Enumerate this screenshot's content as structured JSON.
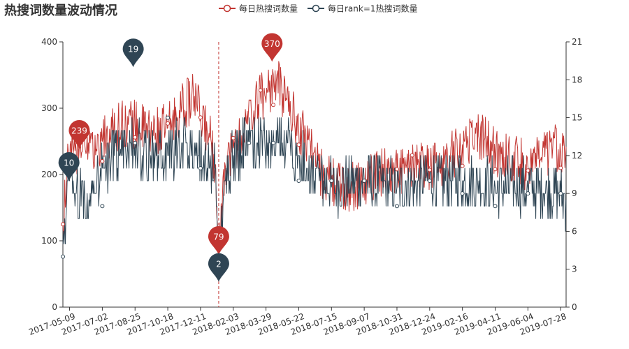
{
  "chart_data": {
    "type": "line",
    "title": "热搜词数量波动情况",
    "colors": {
      "series1": "#c23531",
      "series2": "#2f4554",
      "axis": "#333333",
      "markline": "#c23531"
    },
    "legend": {
      "placement": "top-center"
    },
    "grid": false,
    "x_range": [
      "2017-04-28",
      "2019-08-06"
    ],
    "x_tick_labels": [
      "2017-05-09",
      "2017-07-02",
      "2017-08-25",
      "2017-10-18",
      "2017-12-11",
      "2018-02-03",
      "2018-03-29",
      "2018-05-22",
      "2018-07-15",
      "2018-09-07",
      "2018-10-31",
      "2018-12-24",
      "2019-02-16",
      "2019-04-11",
      "2019-06-04",
      "2019-07-28"
    ],
    "y_left": {
      "range": [
        0,
        400
      ],
      "ticks": [
        "0",
        "100",
        "200",
        "300",
        "400"
      ]
    },
    "y_right": {
      "range": [
        0,
        21
      ],
      "ticks": [
        "0",
        "3",
        "6",
        "9",
        "12",
        "15",
        "18",
        "21"
      ]
    },
    "mark_line_date": "2018-01-10",
    "series": [
      {
        "name": "每日热搜词数量",
        "axis": "left",
        "color": "#c23531",
        "keypoints": [
          [
            "2017-04-28",
            125
          ],
          [
            "2017-05-05",
            215
          ],
          [
            "2017-05-15",
            232
          ],
          [
            "2017-05-25",
            239
          ],
          [
            "2017-06-10",
            232
          ],
          [
            "2017-07-02",
            250
          ],
          [
            "2017-07-20",
            268
          ],
          [
            "2017-08-10",
            280
          ],
          [
            "2017-08-25",
            275
          ],
          [
            "2017-09-20",
            262
          ],
          [
            "2017-10-18",
            270
          ],
          [
            "2017-11-10",
            300
          ],
          [
            "2017-12-01",
            318
          ],
          [
            "2017-12-11",
            285
          ],
          [
            "2017-12-25",
            262
          ],
          [
            "2018-01-05",
            215
          ],
          [
            "2018-01-10",
            79
          ],
          [
            "2018-01-20",
            218
          ],
          [
            "2018-02-03",
            240
          ],
          [
            "2018-02-20",
            262
          ],
          [
            "2018-03-05",
            290
          ],
          [
            "2018-03-20",
            318
          ],
          [
            "2018-04-01",
            328
          ],
          [
            "2018-04-15",
            340
          ],
          [
            "2018-05-01",
            315
          ],
          [
            "2018-05-22",
            268
          ],
          [
            "2018-06-10",
            250
          ],
          [
            "2018-06-25",
            205
          ],
          [
            "2018-07-15",
            190
          ],
          [
            "2018-08-10",
            178
          ],
          [
            "2018-09-07",
            190
          ],
          [
            "2018-10-01",
            205
          ],
          [
            "2018-10-31",
            205
          ],
          [
            "2018-11-25",
            208
          ],
          [
            "2018-12-24",
            212
          ],
          [
            "2019-01-20",
            220
          ],
          [
            "2019-02-16",
            245
          ],
          [
            "2019-03-10",
            262
          ],
          [
            "2019-03-25",
            255
          ],
          [
            "2019-04-11",
            232
          ],
          [
            "2019-05-10",
            225
          ],
          [
            "2019-06-04",
            212
          ],
          [
            "2019-06-25",
            222
          ],
          [
            "2019-07-15",
            240
          ],
          [
            "2019-08-06",
            242
          ]
        ],
        "markers": [
          [
            "2017-04-28",
            125
          ],
          [
            "2017-05-20",
            219
          ],
          [
            "2017-07-02",
            220
          ],
          [
            "2017-08-25",
            256
          ],
          [
            "2017-10-18",
            277
          ],
          [
            "2017-12-11",
            286
          ],
          [
            "2018-02-03",
            255
          ],
          [
            "2018-03-20",
            327
          ],
          [
            "2018-04-10",
            305
          ],
          [
            "2018-05-22",
            245
          ],
          [
            "2018-07-15",
            190
          ],
          [
            "2018-09-07",
            190
          ],
          [
            "2018-10-31",
            208
          ],
          [
            "2018-11-25",
            229
          ],
          [
            "2018-12-24",
            207
          ],
          [
            "2019-02-16",
            213
          ],
          [
            "2019-04-11",
            208
          ],
          [
            "2019-06-04",
            206
          ],
          [
            "2019-07-28",
            210
          ]
        ],
        "pins": [
          {
            "label": "239",
            "date": "2017-05-25",
            "value": 239,
            "role": "max"
          },
          {
            "label": "370",
            "date": "2018-04-08",
            "value": 370,
            "role": "max"
          },
          {
            "label": "79",
            "date": "2018-01-10",
            "value": 79,
            "role": "min"
          }
        ]
      },
      {
        "name": "每日rank=1热搜词数量",
        "axis": "right",
        "color": "#2f4554",
        "keypoints": [
          [
            "2017-04-28",
            4
          ],
          [
            "2017-05-05",
            10
          ],
          [
            "2017-05-20",
            9
          ],
          [
            "2017-06-10",
            8.5
          ],
          [
            "2017-07-02",
            11
          ],
          [
            "2017-08-01",
            12.5
          ],
          [
            "2017-08-25",
            13
          ],
          [
            "2017-09-20",
            12
          ],
          [
            "2017-10-18",
            12
          ],
          [
            "2017-11-10",
            13
          ],
          [
            "2017-12-11",
            12
          ],
          [
            "2018-01-05",
            11
          ],
          [
            "2018-01-10",
            2
          ],
          [
            "2018-01-20",
            10
          ],
          [
            "2018-02-03",
            12
          ],
          [
            "2018-03-01",
            13
          ],
          [
            "2018-04-01",
            13
          ],
          [
            "2018-05-01",
            13
          ],
          [
            "2018-05-22",
            12
          ],
          [
            "2018-06-25",
            10
          ],
          [
            "2018-07-15",
            9.5
          ],
          [
            "2018-09-07",
            10
          ],
          [
            "2018-10-31",
            9.5
          ],
          [
            "2018-12-24",
            10
          ],
          [
            "2019-02-16",
            10
          ],
          [
            "2019-04-11",
            9.5
          ],
          [
            "2019-06-04",
            9.5
          ],
          [
            "2019-07-28",
            9
          ],
          [
            "2019-08-06",
            8.5
          ]
        ],
        "markers": [
          [
            "2017-04-28",
            4
          ],
          [
            "2017-07-02",
            8
          ],
          [
            "2017-08-25",
            13
          ],
          [
            "2017-10-18",
            15
          ],
          [
            "2017-12-11",
            11
          ],
          [
            "2018-03-01",
            13
          ],
          [
            "2018-04-10",
            13
          ],
          [
            "2018-05-22",
            10
          ],
          [
            "2018-07-15",
            10
          ],
          [
            "2018-09-07",
            10
          ],
          [
            "2018-10-31",
            8
          ],
          [
            "2018-12-24",
            10
          ],
          [
            "2019-02-16",
            9
          ],
          [
            "2019-04-11",
            8
          ],
          [
            "2019-06-04",
            9
          ],
          [
            "2019-07-28",
            9
          ]
        ],
        "pins": [
          {
            "label": "10",
            "date": "2017-05-08",
            "value": 10,
            "role": "max"
          },
          {
            "label": "19",
            "date": "2017-08-22",
            "value": 19,
            "role": "max"
          },
          {
            "label": "2",
            "date": "2018-01-10",
            "value": 2,
            "role": "min"
          }
        ]
      }
    ]
  }
}
